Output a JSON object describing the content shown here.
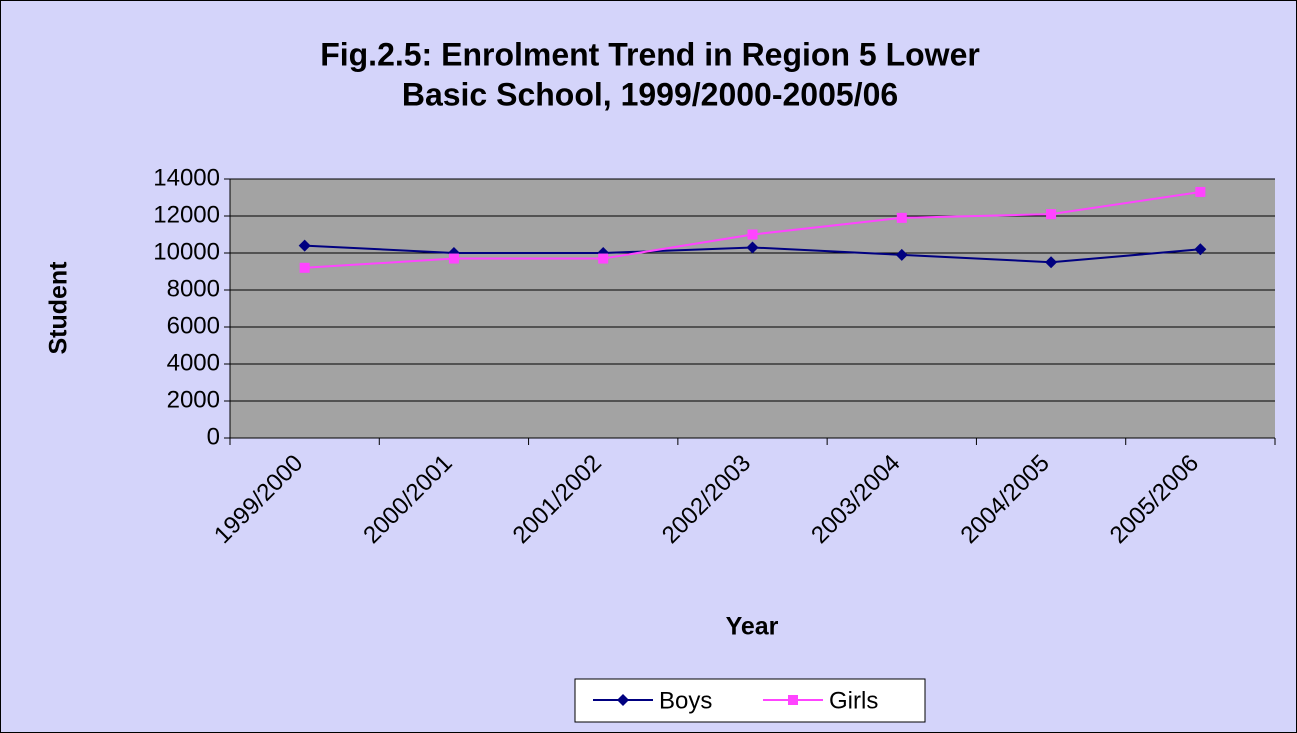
{
  "chart_data": {
    "type": "line",
    "title": [
      "Fig.2.5:  Enrolment Trend in Region 5 Lower",
      "Basic School, 1999/2000-2005/06"
    ],
    "x_label": "Year",
    "y_label": "Student",
    "categories": [
      "1999/2000",
      "2000/2001",
      "2001/2002",
      "2002/2003",
      "2003/2004",
      "2004/2005",
      "2005/2006"
    ],
    "series": [
      {
        "name": "Boys",
        "color": "#000080",
        "marker": "diamond",
        "values": [
          10400,
          10000,
          10000,
          10300,
          9900,
          9500,
          10200
        ]
      },
      {
        "name": "Girls",
        "color": "#ff44ff",
        "marker": "square",
        "values": [
          9200,
          9700,
          9700,
          11000,
          11900,
          12100,
          13300
        ]
      }
    ],
    "ylim": [
      0,
      14000
    ],
    "yticks": [
      0,
      2000,
      4000,
      6000,
      8000,
      10000,
      12000,
      14000
    ],
    "grid": true,
    "legend": "bottom"
  }
}
